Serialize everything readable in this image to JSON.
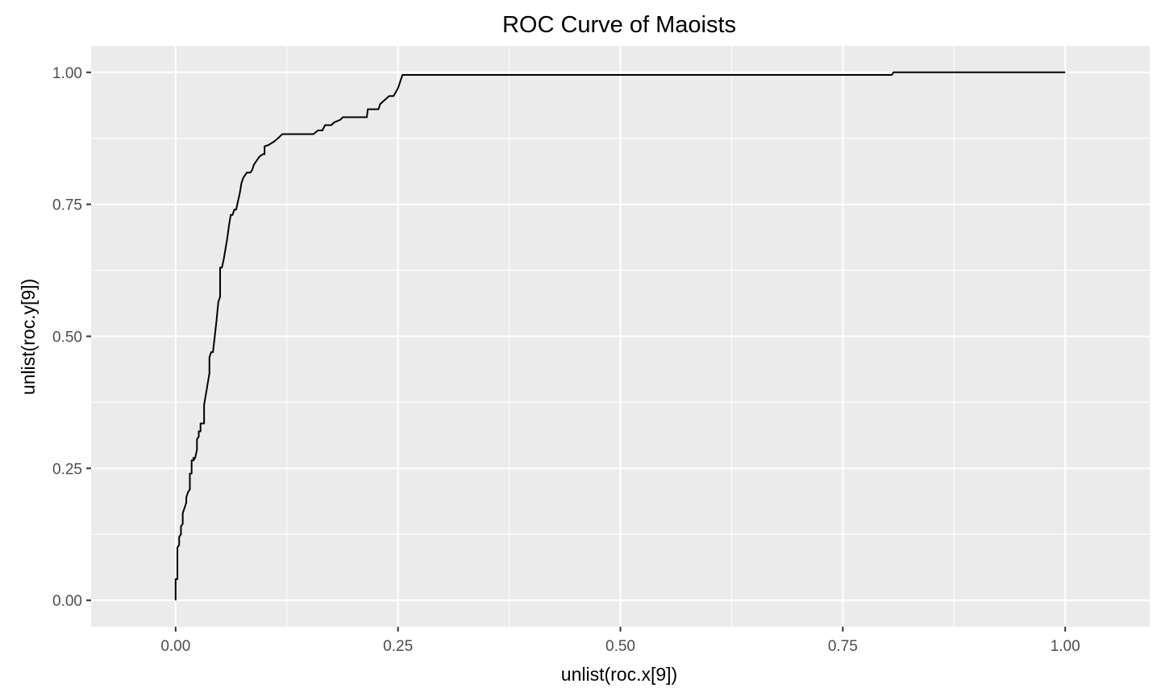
{
  "chart_data": {
    "type": "line",
    "title": "ROC Curve of  Maoists",
    "xlabel": "unlist(roc.x[9])",
    "ylabel": "unlist(roc.y[9])",
    "xlim": [
      -0.095,
      1.095
    ],
    "ylim": [
      -0.05,
      1.05
    ],
    "x_ticks": [
      0.0,
      0.25,
      0.5,
      0.75,
      1.0
    ],
    "x_tick_labels": [
      "0.00",
      "0.25",
      "0.50",
      "0.75",
      "1.00"
    ],
    "y_ticks": [
      0.0,
      0.25,
      0.5,
      0.75,
      1.0
    ],
    "y_tick_labels": [
      "0.00",
      "0.25",
      "0.50",
      "0.75",
      "1.00"
    ],
    "grid": true,
    "legend": "none",
    "series": [
      {
        "name": "ROC",
        "color": "#000000",
        "x": [
          0.0,
          0.0,
          0.002,
          0.002,
          0.004,
          0.004,
          0.006,
          0.006,
          0.008,
          0.008,
          0.01,
          0.012,
          0.012,
          0.014,
          0.016,
          0.016,
          0.018,
          0.018,
          0.02,
          0.02,
          0.02,
          0.022,
          0.024,
          0.024,
          0.026,
          0.026,
          0.028,
          0.028,
          0.03,
          0.03,
          0.032,
          0.032,
          0.038,
          0.038,
          0.04,
          0.042,
          0.044,
          0.046,
          0.048,
          0.05,
          0.05,
          0.052,
          0.054,
          0.054,
          0.056,
          0.056,
          0.058,
          0.06,
          0.062,
          0.064,
          0.066,
          0.068,
          0.07,
          0.072,
          0.074,
          0.076,
          0.08,
          0.082,
          0.084,
          0.086,
          0.088,
          0.09,
          0.092,
          0.094,
          0.098,
          0.1,
          0.1,
          0.104,
          0.11,
          0.115,
          0.12,
          0.125,
          0.128,
          0.13,
          0.155,
          0.16,
          0.165,
          0.168,
          0.175,
          0.178,
          0.185,
          0.188,
          0.194,
          0.215,
          0.216,
          0.226,
          0.228,
          0.23,
          0.24,
          0.245,
          0.25,
          0.253,
          0.255,
          0.26,
          0.805,
          0.807,
          1.0
        ],
        "y": [
          0.0,
          0.04,
          0.04,
          0.1,
          0.105,
          0.12,
          0.125,
          0.14,
          0.145,
          0.165,
          0.175,
          0.185,
          0.195,
          0.205,
          0.21,
          0.24,
          0.24,
          0.265,
          0.265,
          0.27,
          0.265,
          0.27,
          0.285,
          0.305,
          0.31,
          0.32,
          0.32,
          0.335,
          0.335,
          0.335,
          0.335,
          0.37,
          0.43,
          0.46,
          0.47,
          0.47,
          0.5,
          0.53,
          0.565,
          0.575,
          0.63,
          0.63,
          0.645,
          0.645,
          0.665,
          0.665,
          0.685,
          0.71,
          0.73,
          0.73,
          0.74,
          0.74,
          0.755,
          0.77,
          0.79,
          0.8,
          0.81,
          0.81,
          0.81,
          0.815,
          0.825,
          0.83,
          0.835,
          0.84,
          0.845,
          0.845,
          0.86,
          0.862,
          0.868,
          0.875,
          0.883,
          0.883,
          0.883,
          0.883,
          0.883,
          0.89,
          0.89,
          0.9,
          0.9,
          0.905,
          0.91,
          0.915,
          0.915,
          0.915,
          0.93,
          0.93,
          0.93,
          0.94,
          0.955,
          0.955,
          0.97,
          0.985,
          0.995,
          0.995,
          0.995,
          1.0,
          1.0
        ]
      }
    ]
  }
}
